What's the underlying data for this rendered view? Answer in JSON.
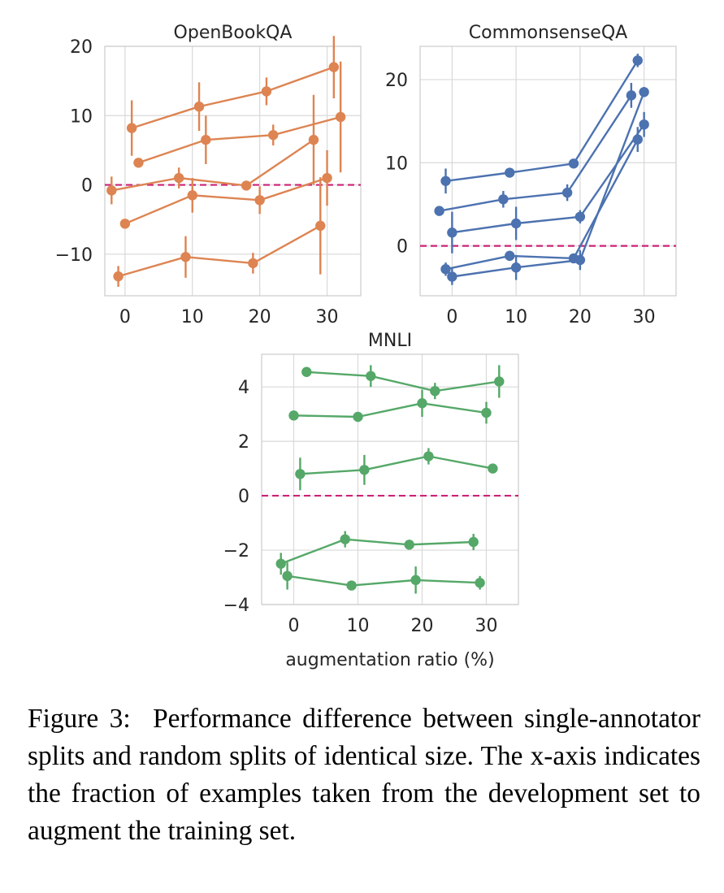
{
  "caption": {
    "label": "Figure 3:",
    "text": "Performance difference between single-annotator splits and random splits of identical size. The x-axis indicates the fraction of examples taken from the development set to augment the training set."
  },
  "colors": {
    "openbookqa": "#dd8452",
    "commonsenseqa": "#4c72b0",
    "mnli": "#55a868",
    "reference_line": "#cc2277",
    "grid": "#d9d9d9",
    "axes_edge": "#cccccc"
  },
  "chart_data": [
    {
      "type": "line",
      "title": "OpenBookQA",
      "xlabel": "",
      "ylabel": "",
      "xlim": [
        -3,
        35
      ],
      "ylim": [
        -16,
        20
      ],
      "xticks": [
        0,
        10,
        20,
        30
      ],
      "yticks": [
        -10,
        0,
        10,
        20
      ],
      "xtick_labels": [
        "0",
        "10",
        "20",
        "30"
      ],
      "ytick_labels": [
        "−10",
        "0",
        "10",
        "20"
      ],
      "reference_line_y": 0,
      "grid": true,
      "legend": "none",
      "series": [
        {
          "x": [
            1,
            11,
            21,
            31
          ],
          "y": [
            8.2,
            11.3,
            13.5,
            17.0
          ],
          "err": [
            4.0,
            3.5,
            2.0,
            4.5
          ]
        },
        {
          "x": [
            2,
            12,
            22,
            32
          ],
          "y": [
            3.2,
            6.5,
            7.2,
            9.8
          ],
          "err": [
            0.5,
            3.5,
            1.5,
            8.0
          ]
        },
        {
          "x": [
            -2,
            8,
            18,
            28
          ],
          "y": [
            -0.8,
            1.0,
            -0.1,
            6.5
          ],
          "err": [
            2.0,
            1.5,
            0.5,
            6.5
          ]
        },
        {
          "x": [
            0,
            10,
            20,
            30
          ],
          "y": [
            -5.6,
            -1.5,
            -2.2,
            1.0
          ],
          "err": [
            0.2,
            2.5,
            2.0,
            4.0
          ]
        },
        {
          "x": [
            -1,
            9,
            19,
            29
          ],
          "y": [
            -13.2,
            -10.4,
            -11.3,
            -5.9
          ],
          "err": [
            1.5,
            3.0,
            1.5,
            7.0
          ]
        }
      ]
    },
    {
      "type": "line",
      "title": "CommonsenseQA",
      "xlabel": "",
      "ylabel": "",
      "xlim": [
        -5,
        35
      ],
      "ylim": [
        -6,
        24
      ],
      "xticks": [
        0,
        10,
        20,
        30
      ],
      "yticks": [
        0,
        10,
        20
      ],
      "xtick_labels": [
        "0",
        "10",
        "20",
        "30"
      ],
      "ytick_labels": [
        "0",
        "10",
        "20"
      ],
      "reference_line_y": 0,
      "grid": true,
      "legend": "none",
      "series": [
        {
          "x": [
            -1,
            9,
            19,
            29
          ],
          "y": [
            7.8,
            8.8,
            9.9,
            22.3
          ],
          "err": [
            1.5,
            0.3,
            0.3,
            0.8
          ]
        },
        {
          "x": [
            -2,
            8,
            18,
            28
          ],
          "y": [
            4.2,
            5.6,
            6.4,
            18.1
          ],
          "err": [
            0.3,
            1.0,
            1.0,
            1.5
          ]
        },
        {
          "x": [
            0,
            10,
            20,
            30
          ],
          "y": [
            1.6,
            2.7,
            3.5,
            14.6
          ],
          "err": [
            2.5,
            2.0,
            0.8,
            1.5
          ]
        },
        {
          "x": [
            -1,
            9,
            19,
            29
          ],
          "y": [
            -2.8,
            -1.2,
            -1.5,
            12.8
          ],
          "err": [
            0.8,
            0.6,
            0.3,
            1.5
          ]
        },
        {
          "x": [
            0,
            10,
            20,
            30
          ],
          "y": [
            -3.7,
            -2.6,
            -1.7,
            18.5
          ],
          "err": [
            1.0,
            1.5,
            1.2,
            0.6
          ]
        }
      ]
    },
    {
      "type": "line",
      "title": "MNLI",
      "xlabel": "augmentation ratio (%)",
      "ylabel": "",
      "xlim": [
        -5,
        35
      ],
      "ylim": [
        -4,
        5.2
      ],
      "xticks": [
        0,
        10,
        20,
        30
      ],
      "yticks": [
        -4,
        -2,
        0,
        2,
        4
      ],
      "xtick_labels": [
        "0",
        "10",
        "20",
        "30"
      ],
      "ytick_labels": [
        "−4",
        "−2",
        "0",
        "2",
        "4"
      ],
      "reference_line_y": 0,
      "grid": true,
      "legend": "none",
      "series": [
        {
          "x": [
            2,
            12,
            22,
            32
          ],
          "y": [
            4.55,
            4.4,
            3.85,
            4.2
          ],
          "err": [
            0.0,
            0.4,
            0.3,
            0.6
          ]
        },
        {
          "x": [
            0,
            10,
            20,
            30
          ],
          "y": [
            2.95,
            2.9,
            3.4,
            3.05
          ],
          "err": [
            0.0,
            0.0,
            0.5,
            0.4
          ]
        },
        {
          "x": [
            1,
            11,
            21,
            31
          ],
          "y": [
            0.8,
            0.95,
            1.45,
            1.0
          ],
          "err": [
            0.6,
            0.55,
            0.3,
            0.1
          ]
        },
        {
          "x": [
            -2,
            8,
            18,
            28
          ],
          "y": [
            -2.5,
            -1.6,
            -1.8,
            -1.7
          ],
          "err": [
            0.4,
            0.3,
            0.1,
            0.3
          ]
        },
        {
          "x": [
            -1,
            9,
            19,
            29
          ],
          "y": [
            -2.95,
            -3.3,
            -3.1,
            -3.2
          ],
          "err": [
            0.5,
            0.0,
            0.5,
            0.25
          ]
        }
      ]
    }
  ]
}
